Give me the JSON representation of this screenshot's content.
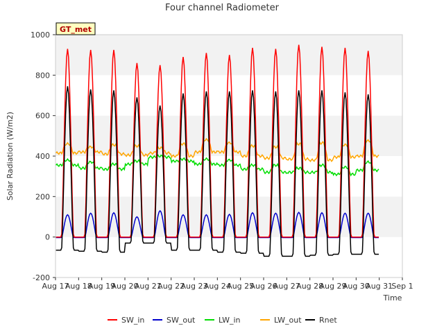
{
  "chart_data": {
    "type": "line",
    "title": "Four channel Radiometer",
    "xlabel": "Time",
    "ylabel": "Solar Radiation (W/m2)",
    "site_label": "GT_met",
    "ylim": [
      -200,
      1000
    ],
    "yticks": [
      -200,
      0,
      200,
      400,
      600,
      800,
      1000
    ],
    "xlim": [
      17,
      32
    ],
    "xticks": [
      17,
      18,
      19,
      20,
      21,
      22,
      23,
      24,
      25,
      26,
      27,
      28,
      29,
      30,
      31,
      32
    ],
    "xtick_labels": [
      "Aug 17",
      "Aug 18",
      "Aug 19",
      "Aug 20",
      "Aug 21",
      "Aug 22",
      "Aug 23",
      "Aug 24",
      "Aug 25",
      "Aug 26",
      "Aug 27",
      "Aug 28",
      "Aug 29",
      "Aug 30",
      "Aug 31",
      "Sep 1"
    ],
    "days": [
      17,
      18,
      19,
      20,
      21,
      22,
      23,
      24,
      25,
      26,
      27,
      28,
      29,
      30
    ],
    "series": [
      {
        "name": "SW_in",
        "color": "#ff0000",
        "daily_peak": [
          930,
          925,
          925,
          860,
          850,
          890,
          910,
          900,
          935,
          930,
          950,
          940,
          935,
          920
        ],
        "night": 0
      },
      {
        "name": "SW_out",
        "color": "#0000cc",
        "daily_peak": [
          110,
          118,
          120,
          100,
          130,
          110,
          110,
          112,
          120,
          118,
          122,
          120,
          118,
          118
        ],
        "night": -3
      },
      {
        "name": "LW_in",
        "color": "#00dd00",
        "night_level": [
          355,
          340,
          335,
          360,
          395,
          375,
          360,
          355,
          335,
          320,
          320,
          320,
          310,
          330
        ],
        "day_level": [
          380,
          370,
          360,
          375,
          400,
          385,
          385,
          380,
          355,
          355,
          340,
          355,
          345,
          370
        ]
      },
      {
        "name": "LW_out",
        "color": "#ffa500",
        "night_level": [
          415,
          420,
          410,
          405,
          415,
          400,
          420,
          420,
          400,
          390,
          385,
          380,
          395,
          400
        ],
        "day_level": [
          460,
          445,
          455,
          450,
          440,
          460,
          480,
          465,
          450,
          445,
          460,
          465,
          455,
          475
        ]
      },
      {
        "name": "Rnet",
        "color": "#000000",
        "daily_peak": [
          745,
          730,
          725,
          690,
          650,
          710,
          720,
          720,
          725,
          720,
          725,
          725,
          715,
          705
        ],
        "night": [
          -65,
          -70,
          -75,
          -30,
          -30,
          -65,
          -65,
          -75,
          -80,
          -95,
          -95,
          -90,
          -85,
          -85
        ]
      }
    ]
  }
}
